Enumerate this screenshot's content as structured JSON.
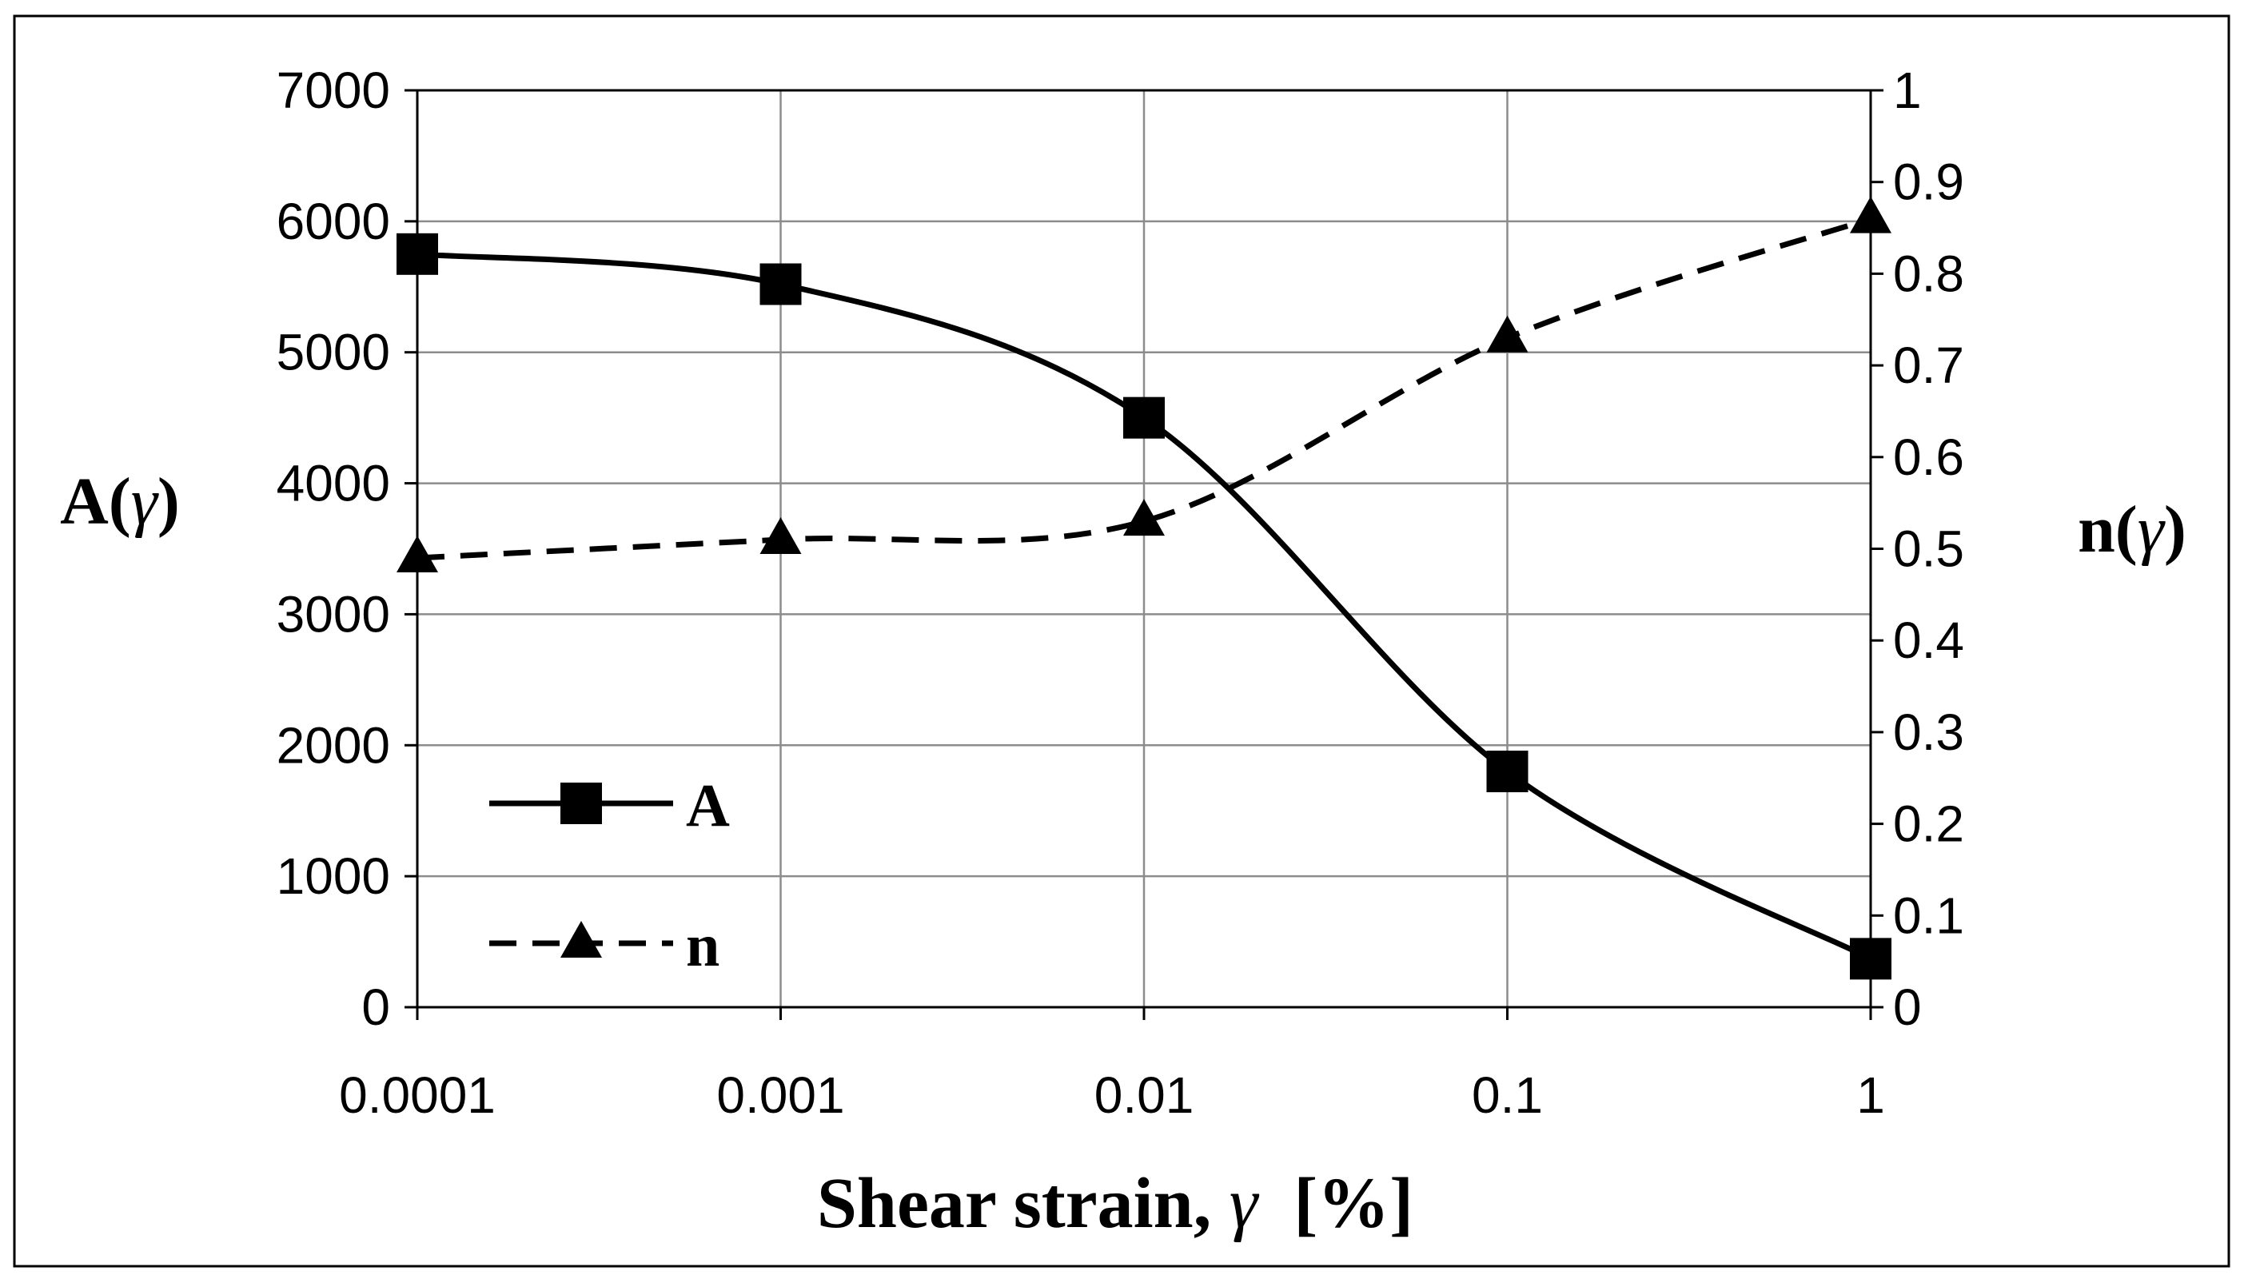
{
  "chart_data": {
    "type": "line",
    "x_scale": "log",
    "x": [
      0.0001,
      0.001,
      0.01,
      0.1,
      1
    ],
    "x_tick_labels": [
      "0.0001",
      "0.001",
      "0.01",
      "0.1",
      "1"
    ],
    "xlabel": {
      "prefix": "Shear strain, ",
      "symbol": "γ",
      "suffix": "  [%]"
    },
    "ylabel_left": {
      "prefix": "A(",
      "symbol": "γ",
      "suffix": ")"
    },
    "ylabel_right": {
      "prefix": "n(",
      "symbol": "γ",
      "suffix": ")"
    },
    "ylim_left": [
      0,
      7000
    ],
    "ylim_right": [
      0,
      1
    ],
    "y_ticks_left": [
      0,
      1000,
      2000,
      3000,
      4000,
      5000,
      6000,
      7000
    ],
    "y_tick_labels_left": [
      "0",
      "1000",
      "2000",
      "3000",
      "4000",
      "5000",
      "6000",
      "7000"
    ],
    "y_ticks_right": [
      0,
      0.1,
      0.2,
      0.3,
      0.4,
      0.5,
      0.6,
      0.7,
      0.8,
      0.9,
      1
    ],
    "y_tick_labels_right": [
      "0",
      "0.1",
      "0.2",
      "0.3",
      "0.4",
      "0.5",
      "0.6",
      "0.7",
      "0.8",
      "0.9",
      "1"
    ],
    "grid": true,
    "legend_position": "bottom-left",
    "series": [
      {
        "name": "A",
        "axis": "left",
        "marker": "square",
        "line": "solid",
        "values": [
          5750,
          5520,
          4500,
          1800,
          370
        ]
      },
      {
        "name": "n",
        "axis": "right",
        "marker": "triangle",
        "line": "dashed",
        "values": [
          0.49,
          0.51,
          0.53,
          0.73,
          0.86
        ]
      }
    ]
  }
}
